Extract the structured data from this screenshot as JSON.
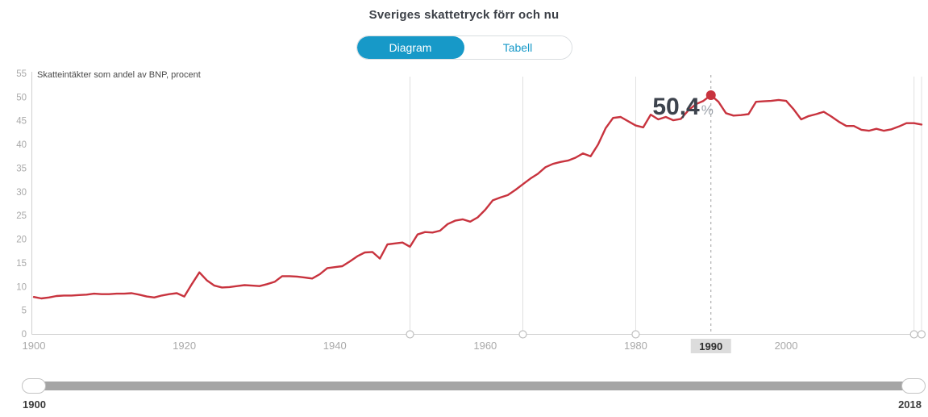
{
  "title": "Sveriges skattetryck förr och nu",
  "tabs": [
    {
      "label": "Diagram",
      "active": true
    },
    {
      "label": "Tabell",
      "active": false
    }
  ],
  "colors": {
    "accent": "#1799c8",
    "line": "#c8333e",
    "dot": "#c8333e",
    "annotation_number": "#3d434d",
    "annotation_suffix": "#9ba1a9",
    "axis": "#cfcfcf",
    "tick_label": "#a9a9a9",
    "reference_line": "#e0e0e0",
    "reference_circle_stroke": "#c0c0c0",
    "dashed_line": "#9e9e9e",
    "highlight_chip_bg": "#dcdcdc",
    "highlight_chip_text": "#2f2f2f",
    "series_label": "#4a4a4a",
    "title": "#3d4148"
  },
  "chart_data": {
    "type": "line",
    "series_label": "Skatteintäkter som andel av BNP, procent",
    "xlim": [
      1900,
      2018
    ],
    "ylim": [
      0,
      55
    ],
    "y_ticks": [
      0,
      5,
      10,
      15,
      20,
      25,
      30,
      35,
      40,
      45,
      50,
      55
    ],
    "x_ticks": [
      1900,
      1920,
      1940,
      1960,
      1980,
      2000
    ],
    "reference_years": [
      1950,
      1965,
      1980,
      2017,
      2018
    ],
    "grid": "vertical-reference-lines-only",
    "legend": "none",
    "highlight": {
      "year": 1990,
      "value": 50.4,
      "label": "50,4",
      "suffix": "%"
    },
    "x": [
      1900,
      1901,
      1902,
      1903,
      1904,
      1905,
      1906,
      1907,
      1908,
      1909,
      1910,
      1911,
      1912,
      1913,
      1914,
      1915,
      1916,
      1917,
      1918,
      1919,
      1920,
      1921,
      1922,
      1923,
      1924,
      1925,
      1926,
      1927,
      1928,
      1929,
      1930,
      1931,
      1932,
      1933,
      1934,
      1935,
      1936,
      1937,
      1938,
      1939,
      1940,
      1941,
      1942,
      1943,
      1944,
      1945,
      1946,
      1947,
      1948,
      1949,
      1950,
      1951,
      1952,
      1953,
      1954,
      1955,
      1956,
      1957,
      1958,
      1959,
      1960,
      1961,
      1962,
      1963,
      1964,
      1965,
      1966,
      1967,
      1968,
      1969,
      1970,
      1971,
      1972,
      1973,
      1974,
      1975,
      1976,
      1977,
      1978,
      1979,
      1980,
      1981,
      1982,
      1983,
      1984,
      1985,
      1986,
      1987,
      1988,
      1989,
      1990,
      1991,
      1992,
      1993,
      1994,
      1995,
      1996,
      1997,
      1998,
      1999,
      2000,
      2001,
      2002,
      2003,
      2004,
      2005,
      2006,
      2007,
      2008,
      2009,
      2010,
      2011,
      2012,
      2013,
      2014,
      2015,
      2016,
      2017,
      2018
    ],
    "values": [
      7.8,
      7.5,
      7.7,
      8.0,
      8.1,
      8.1,
      8.2,
      8.3,
      8.5,
      8.4,
      8.4,
      8.5,
      8.5,
      8.6,
      8.3,
      7.9,
      7.7,
      8.1,
      8.4,
      8.6,
      7.9,
      10.5,
      13.0,
      11.3,
      10.2,
      9.8,
      9.9,
      10.1,
      10.3,
      10.2,
      10.1,
      10.5,
      11.0,
      12.2,
      12.2,
      12.1,
      11.9,
      11.7,
      12.6,
      13.9,
      14.1,
      14.3,
      15.3,
      16.4,
      17.2,
      17.3,
      15.9,
      18.9,
      19.1,
      19.3,
      18.4,
      21.0,
      21.5,
      21.4,
      21.8,
      23.2,
      23.9,
      24.2,
      23.7,
      24.6,
      26.2,
      28.2,
      28.8,
      29.3,
      30.4,
      31.6,
      32.8,
      33.8,
      35.2,
      35.9,
      36.3,
      36.6,
      37.2,
      38.1,
      37.5,
      40.0,
      43.4,
      45.6,
      45.8,
      44.9,
      44.0,
      43.6,
      46.3,
      45.3,
      45.8,
      45.1,
      45.4,
      47.2,
      48.5,
      49.2,
      50.4,
      49.0,
      46.6,
      46.1,
      46.2,
      46.4,
      49.0,
      49.1,
      49.2,
      49.4,
      49.2,
      47.4,
      45.3,
      46.0,
      46.4,
      46.9,
      45.9,
      44.8,
      43.9,
      43.9,
      43.1,
      42.9,
      43.3,
      42.9,
      43.2,
      43.8,
      44.5,
      44.5,
      44.2
    ]
  },
  "slider": {
    "min_label": "1900",
    "max_label": "2018"
  }
}
